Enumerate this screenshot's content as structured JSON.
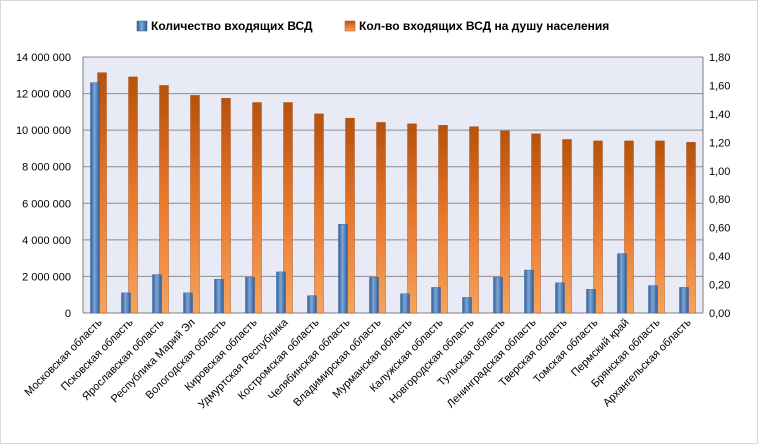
{
  "chart_data": {
    "type": "bar",
    "categories": [
      "Московская область",
      "Псковская область",
      "Ярославская область",
      "Республика Марий Эл",
      "Вологодская область",
      "Кировская область",
      "Удмуртская Республика",
      "Костромская область",
      "Челябинская область",
      "Владимирская область",
      "Мурманская область",
      "Калужская область",
      "Новгородская область",
      "Тульская область",
      "Ленинградская область",
      "Тверская область",
      "Томская область",
      "Пермский край",
      "Брянская область",
      "Архангельская область"
    ],
    "series": [
      {
        "name": "Количество входящих ВСД",
        "axis": "left",
        "color": "#4f81bd",
        "values": [
          12600000,
          1100000,
          2100000,
          1100000,
          1850000,
          1950000,
          2250000,
          950000,
          4850000,
          1950000,
          1050000,
          1400000,
          850000,
          1950000,
          2350000,
          1650000,
          1300000,
          3250000,
          1500000,
          1400000
        ]
      },
      {
        "name": "Кол-во входящих ВСД на душу населения",
        "axis": "right",
        "color": "#e46c0a",
        "values": [
          1.69,
          1.66,
          1.6,
          1.53,
          1.51,
          1.48,
          1.48,
          1.4,
          1.37,
          1.34,
          1.33,
          1.32,
          1.31,
          1.28,
          1.26,
          1.22,
          1.21,
          1.21,
          1.21,
          1.2
        ]
      }
    ],
    "y_left": {
      "ylim": [
        0,
        14000000
      ],
      "ticks": [
        0,
        2000000,
        4000000,
        6000000,
        8000000,
        10000000,
        12000000,
        14000000
      ],
      "tick_labels": [
        "0",
        "2 000 000",
        "4 000 000",
        "6 000 000",
        "8 000 000",
        "10 000 000",
        "12 000 000",
        "14 000 000"
      ]
    },
    "y_right": {
      "ylim": [
        0,
        1.8
      ],
      "ticks": [
        0,
        0.2,
        0.4,
        0.6,
        0.8,
        1.0,
        1.2,
        1.4,
        1.6,
        1.8
      ],
      "tick_labels": [
        "0,00",
        "0,20",
        "0,40",
        "0,60",
        "0,80",
        "1,00",
        "1,20",
        "1,40",
        "1,60",
        "1,80"
      ]
    },
    "grid": true,
    "legend_position": "top",
    "plot_background": "#e8eaf6"
  }
}
